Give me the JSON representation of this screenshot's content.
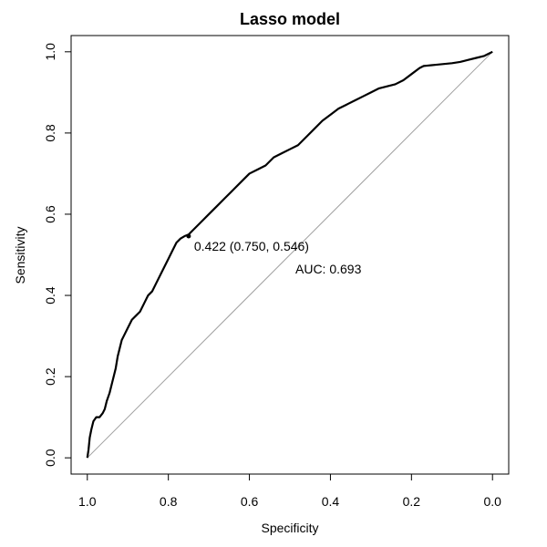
{
  "chart_data": {
    "type": "line",
    "title": "Lasso model",
    "xlabel": "Specificity",
    "ylabel": "Sensitivity",
    "xlim": [
      1.04,
      -0.04
    ],
    "ylim": [
      -0.04,
      1.04
    ],
    "x_reversed": true,
    "x_ticks": [
      1.0,
      0.8,
      0.6,
      0.4,
      0.2,
      0.0
    ],
    "x_tick_labels": [
      "1.0",
      "0.8",
      "0.6",
      "0.4",
      "0.2",
      "0.0"
    ],
    "y_ticks": [
      0.0,
      0.2,
      0.4,
      0.6,
      0.8,
      1.0
    ],
    "y_tick_labels": [
      "0.0",
      "0.2",
      "0.4",
      "0.6",
      "0.8",
      "1.0"
    ],
    "grid": false,
    "legend": "none",
    "series": [
      {
        "x": [
          1.0,
          0.997,
          0.994,
          0.99,
          0.985,
          0.978,
          0.97,
          0.962,
          0.957,
          0.952,
          0.945,
          0.94,
          0.935,
          0.93,
          0.925,
          0.92,
          0.915,
          0.91,
          0.9,
          0.89,
          0.88,
          0.87,
          0.86,
          0.85,
          0.84,
          0.83,
          0.82,
          0.81,
          0.8,
          0.79,
          0.78,
          0.77,
          0.76,
          0.75,
          0.74,
          0.72,
          0.7,
          0.68,
          0.66,
          0.64,
          0.62,
          0.6,
          0.58,
          0.56,
          0.54,
          0.52,
          0.5,
          0.48,
          0.46,
          0.44,
          0.42,
          0.4,
          0.38,
          0.36,
          0.34,
          0.32,
          0.3,
          0.28,
          0.26,
          0.24,
          0.22,
          0.2,
          0.18,
          0.17,
          0.16,
          0.15,
          0.14,
          0.12,
          0.1,
          0.08,
          0.06,
          0.04,
          0.02,
          0.01,
          0.0
        ],
        "y": [
          0.0,
          0.02,
          0.05,
          0.07,
          0.09,
          0.1,
          0.1,
          0.11,
          0.12,
          0.14,
          0.16,
          0.18,
          0.2,
          0.22,
          0.25,
          0.27,
          0.29,
          0.3,
          0.32,
          0.34,
          0.35,
          0.36,
          0.38,
          0.4,
          0.41,
          0.43,
          0.45,
          0.47,
          0.49,
          0.51,
          0.53,
          0.54,
          0.546,
          0.55,
          0.56,
          0.58,
          0.6,
          0.62,
          0.64,
          0.66,
          0.68,
          0.7,
          0.71,
          0.72,
          0.74,
          0.75,
          0.76,
          0.77,
          0.79,
          0.81,
          0.83,
          0.845,
          0.86,
          0.87,
          0.88,
          0.89,
          0.9,
          0.91,
          0.915,
          0.92,
          0.93,
          0.945,
          0.96,
          0.965,
          0.966,
          0.967,
          0.968,
          0.97,
          0.972,
          0.975,
          0.98,
          0.985,
          0.99,
          0.995,
          1.0
        ]
      }
    ],
    "reference_line": {
      "from": [
        1.0,
        0.0
      ],
      "to": [
        0.0,
        1.0
      ]
    },
    "annotations": [
      {
        "text": "0.422 (0.750, 0.546)",
        "x": 0.75,
        "y": 0.546
      },
      {
        "text": "AUC: 0.693",
        "x": 0.5,
        "y": 0.49
      }
    ]
  }
}
